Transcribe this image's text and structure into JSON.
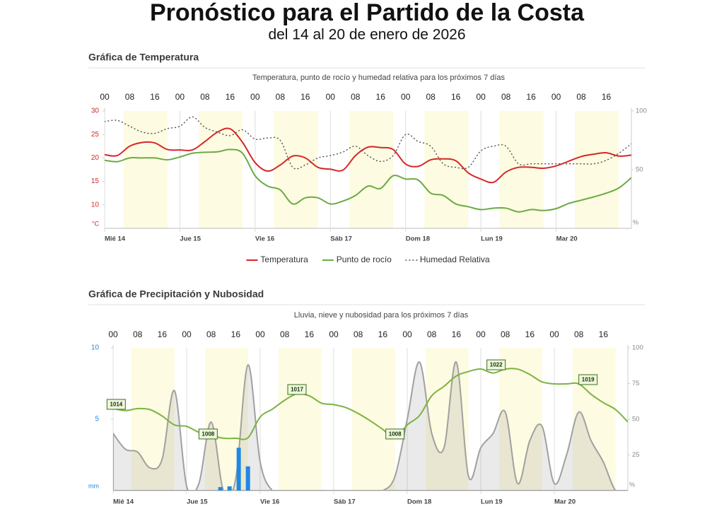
{
  "header": {
    "title": "Pronóstico para el Partido de la Costa",
    "subtitle": "del 14 al 20 de enero de 2026"
  },
  "chart_data": [
    {
      "type": "line",
      "heading": "Gráfica de Temperatura",
      "title": "Temperatura, punto de rocío y humedad relativa para los próximos 7 días",
      "x": [
        0,
        4,
        8,
        12,
        16,
        20,
        24,
        28,
        32,
        36,
        40,
        44,
        48,
        52,
        56,
        60,
        64,
        68,
        72,
        76,
        80,
        84,
        88,
        92,
        96,
        100,
        104,
        108,
        112,
        116,
        120,
        124,
        128,
        132,
        136,
        140,
        144,
        148,
        152,
        156,
        160,
        164,
        168
      ],
      "xlim": [
        0,
        168
      ],
      "xticks": [
        {
          "value": 0,
          "label": "Mié 14"
        },
        {
          "value": 24,
          "label": "Jue 15"
        },
        {
          "value": 48,
          "label": "Vie 16"
        },
        {
          "value": 72,
          "label": "Sáb 17"
        },
        {
          "value": 96,
          "label": "Dom 18"
        },
        {
          "value": 120,
          "label": "Lun 19"
        },
        {
          "value": 144,
          "label": "Mar 20"
        }
      ],
      "x2ticks": [
        {
          "value": 0,
          "label": "00"
        },
        {
          "value": 8,
          "label": "08"
        },
        {
          "value": 16,
          "label": "16"
        },
        {
          "value": 24,
          "label": "00"
        },
        {
          "value": 32,
          "label": "08"
        },
        {
          "value": 40,
          "label": "16"
        },
        {
          "value": 48,
          "label": "00"
        },
        {
          "value": 56,
          "label": "08"
        },
        {
          "value": 64,
          "label": "16"
        },
        {
          "value": 72,
          "label": "00"
        },
        {
          "value": 80,
          "label": "08"
        },
        {
          "value": 88,
          "label": "16"
        },
        {
          "value": 96,
          "label": "00"
        },
        {
          "value": 104,
          "label": "08"
        },
        {
          "value": 112,
          "label": "16"
        },
        {
          "value": 120,
          "label": "00"
        },
        {
          "value": 128,
          "label": "08"
        },
        {
          "value": 136,
          "label": "16"
        },
        {
          "value": 144,
          "label": "00"
        },
        {
          "value": 152,
          "label": "08"
        },
        {
          "value": 160,
          "label": "16"
        }
      ],
      "ylim": [
        5,
        30
      ],
      "yticks": [
        10,
        15,
        20,
        25,
        30
      ],
      "ylabel": "°C",
      "ycolor": "#d62728",
      "y2lim": [
        0,
        100
      ],
      "y2ticks": [
        50,
        100
      ],
      "y2label": "%",
      "legend": "bottom",
      "series": [
        {
          "name": "Temperatura",
          "color": "#d62728",
          "values": [
            20.7,
            20.5,
            22.5,
            23.3,
            23.2,
            21.8,
            21.7,
            21.7,
            23.5,
            25.5,
            26.2,
            23.3,
            19.0,
            17.2,
            18.5,
            20.4,
            20.0,
            18.0,
            17.6,
            17.4,
            20.5,
            22.3,
            22.2,
            21.8,
            18.7,
            18.2,
            19.6,
            19.8,
            19.4,
            16.8,
            15.5,
            14.8,
            17.0,
            18.0,
            18.0,
            17.8,
            18.3,
            19.3,
            20.3,
            20.8,
            21.1,
            20.4,
            20.6
          ]
        },
        {
          "name": "Punto de rocío",
          "color": "#6aaa45",
          "values": [
            19.5,
            19.2,
            20.0,
            20.0,
            20.0,
            19.6,
            20.2,
            21.0,
            21.2,
            21.3,
            21.8,
            21.0,
            16.2,
            14.0,
            13.2,
            10.2,
            11.5,
            11.5,
            10.2,
            10.8,
            12.0,
            14.0,
            13.5,
            16.2,
            15.5,
            15.3,
            12.5,
            12.0,
            10.2,
            9.6,
            9.0,
            9.3,
            9.3,
            8.5,
            9.0,
            8.8,
            9.2,
            10.3,
            11.0,
            11.7,
            12.5,
            13.6,
            15.8
          ]
        },
        {
          "name": "Humedad Relativa",
          "color": "#555555",
          "style": "dotted",
          "axis": "y2",
          "values": [
            91,
            92,
            87,
            82,
            81,
            85,
            87,
            95,
            86,
            82,
            79,
            84,
            76,
            77,
            75,
            52,
            54,
            60,
            62,
            65,
            70,
            62,
            57,
            62,
            80,
            74,
            70,
            55,
            52,
            52,
            66,
            70,
            70,
            55,
            55,
            55,
            55,
            55,
            55,
            55,
            58,
            64,
            72
          ]
        }
      ]
    },
    {
      "type": "mixed",
      "heading": "Gráfica de Precipitación y Nubosidad",
      "title": "Lluvia, nieve y nubosidad para los próximos 7 días",
      "x": [
        0,
        4,
        8,
        12,
        16,
        20,
        24,
        28,
        32,
        36,
        40,
        44,
        48,
        52,
        56,
        60,
        64,
        68,
        72,
        76,
        80,
        84,
        88,
        92,
        96,
        100,
        104,
        108,
        112,
        116,
        120,
        124,
        128,
        132,
        136,
        140,
        144,
        148,
        152,
        156,
        160,
        164,
        168
      ],
      "xlim": [
        0,
        168
      ],
      "xticks": [
        {
          "value": 0,
          "label": "Mié 14"
        },
        {
          "value": 24,
          "label": "Jue 15"
        },
        {
          "value": 48,
          "label": "Vie 16"
        },
        {
          "value": 72,
          "label": "Sáb 17"
        },
        {
          "value": 96,
          "label": "Dom 18"
        },
        {
          "value": 120,
          "label": "Lun 19"
        },
        {
          "value": 144,
          "label": "Mar 20"
        }
      ],
      "x2ticks": [
        {
          "value": 0,
          "label": "00"
        },
        {
          "value": 8,
          "label": "08"
        },
        {
          "value": 16,
          "label": "16"
        },
        {
          "value": 24,
          "label": "00"
        },
        {
          "value": 32,
          "label": "08"
        },
        {
          "value": 40,
          "label": "16"
        },
        {
          "value": 48,
          "label": "00"
        },
        {
          "value": 56,
          "label": "08"
        },
        {
          "value": 64,
          "label": "16"
        },
        {
          "value": 72,
          "label": "00"
        },
        {
          "value": 80,
          "label": "08"
        },
        {
          "value": 88,
          "label": "16"
        },
        {
          "value": 96,
          "label": "00"
        },
        {
          "value": 104,
          "label": "08"
        },
        {
          "value": 112,
          "label": "16"
        },
        {
          "value": 120,
          "label": "00"
        },
        {
          "value": 128,
          "label": "08"
        },
        {
          "value": 136,
          "label": "16"
        },
        {
          "value": 144,
          "label": "00"
        },
        {
          "value": 152,
          "label": "08"
        },
        {
          "value": 160,
          "label": "16"
        }
      ],
      "ylim": [
        0,
        10
      ],
      "yticks": [
        5,
        10
      ],
      "ylabel": "mm",
      "ycolor": "#1e88e5",
      "y2lim": [
        0,
        100
      ],
      "y2ticks": [
        25,
        50,
        75,
        100
      ],
      "y2label": "%",
      "y3lim": [
        997.4,
        1026.3
      ],
      "series": [
        {
          "type": "area",
          "color": "#a0a0a0",
          "axis": "y2",
          "values": [
            40,
            29,
            27,
            16,
            22,
            70,
            3,
            5,
            48,
            0,
            8,
            88,
            20,
            0,
            0,
            0,
            0,
            0,
            0,
            0,
            0,
            0,
            0,
            10,
            50,
            90,
            40,
            30,
            90,
            10,
            30,
            40,
            55,
            5,
            35,
            45,
            5,
            25,
            55,
            35,
            20,
            0,
            0
          ]
        },
        {
          "type": "line",
          "color": "#7cb342",
          "axis": "y3",
          "values": [
            1014,
            1013.6,
            1014,
            1013.8,
            1012.5,
            1010.7,
            1010.4,
            1009.2,
            1008.6,
            1008,
            1008,
            1008.1,
            1012.3,
            1013.9,
            1015.7,
            1017,
            1016.6,
            1015.1,
            1014.8,
            1014.2,
            1013,
            1011.5,
            1009.8,
            1008,
            1010.7,
            1012.6,
            1016.6,
            1018.5,
            1020.6,
            1021.5,
            1022,
            1021.2,
            1022,
            1022,
            1020.9,
            1019.4,
            1019,
            1019,
            1019,
            1016.9,
            1015.2,
            1013.8,
            1011.3
          ]
        },
        {
          "type": "bar",
          "color": "#1e88e5",
          "x": [
            35,
            38,
            41,
            44
          ],
          "values": [
            0.25,
            0.3,
            3.0,
            1.7
          ]
        }
      ],
      "annotations": [
        {
          "x": 1,
          "value": 1014
        },
        {
          "x": 31,
          "value": 1008
        },
        {
          "x": 60,
          "value": 1017
        },
        {
          "x": 92,
          "value": 1008
        },
        {
          "x": 125,
          "value": 1022
        },
        {
          "x": 155,
          "value": 1019
        }
      ]
    }
  ]
}
